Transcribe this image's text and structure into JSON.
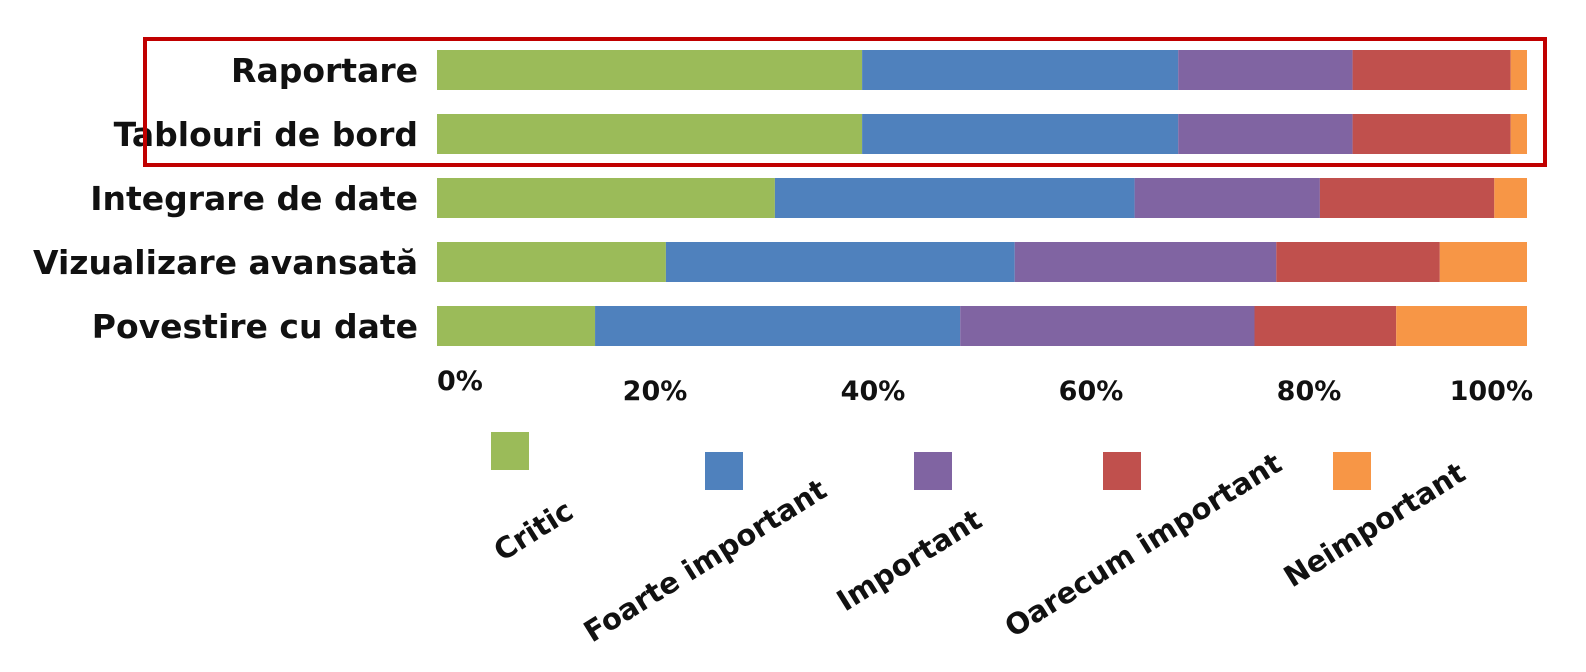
{
  "chart_data": {
    "type": "bar",
    "orientation": "horizontal",
    "stacked": true,
    "percent": true,
    "categories": [
      "Raportare",
      "Tablouri de bord",
      "Integrare de date",
      "Vizualizare avansată",
      "Povestire cu date"
    ],
    "series": [
      {
        "name": "Critic",
        "color": "#9bbb59",
        "values": [
          39,
          39,
          31,
          21,
          14.5
        ]
      },
      {
        "name": "Foarte important",
        "color": "#4f81bd",
        "values": [
          29,
          29,
          33,
          32,
          33.5
        ]
      },
      {
        "name": "Important",
        "color": "#8064a2",
        "values": [
          16,
          16,
          17,
          24,
          27
        ]
      },
      {
        "name": "Oarecum important",
        "color": "#c0504d",
        "values": [
          14.5,
          14.5,
          16,
          15,
          13
        ]
      },
      {
        "name": "Neimportant",
        "color": "#f79646",
        "values": [
          1.5,
          1.5,
          3,
          8,
          12
        ]
      }
    ],
    "xticks": [
      "0%",
      "20%",
      "40%",
      "60%",
      "80%",
      "100%"
    ],
    "xlim": [
      0,
      100
    ],
    "grid": false,
    "legend_position": "bottom",
    "highlighted_categories": [
      "Raportare",
      "Tablouri de bord"
    ],
    "highlight_color": "#c00000"
  }
}
